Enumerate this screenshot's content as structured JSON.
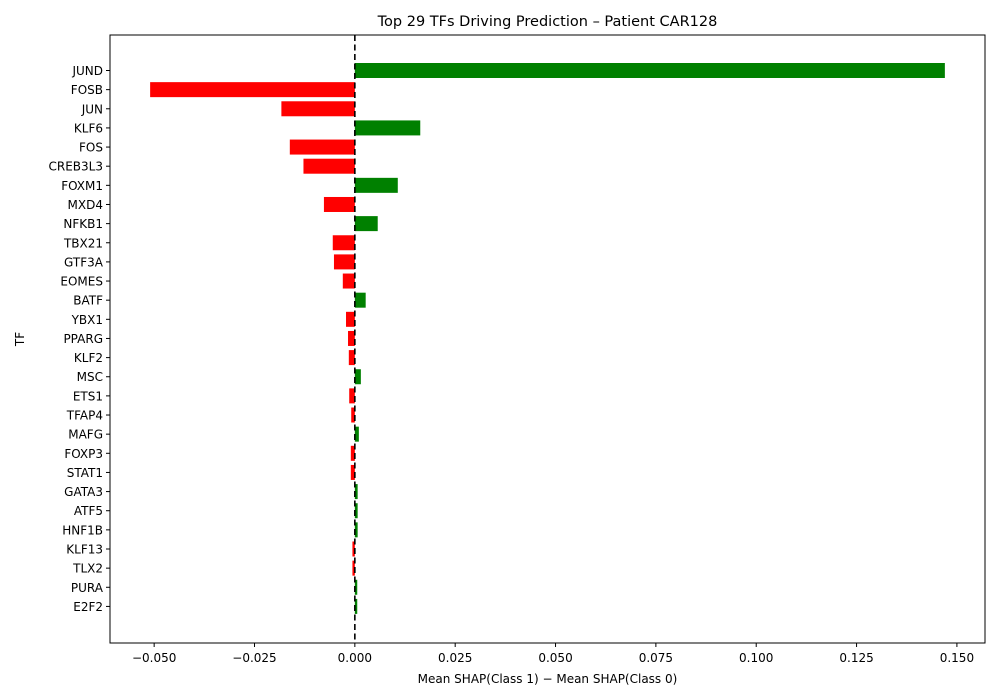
{
  "chart_data": {
    "type": "bar",
    "orientation": "horizontal",
    "title": "Top 29 TFs Driving Prediction – Patient CAR128",
    "xlabel": "Mean SHAP(Class 1) − Mean SHAP(Class 0)",
    "ylabel": "TF",
    "xlim": [
      -0.061,
      0.157
    ],
    "xticks": [
      -0.05,
      -0.025,
      0.0,
      0.025,
      0.05,
      0.075,
      0.1,
      0.125,
      0.15
    ],
    "xtick_labels": [
      "−0.050",
      "−0.025",
      "0.000",
      "0.025",
      "0.050",
      "0.075",
      "0.100",
      "0.125",
      "0.150"
    ],
    "reference_line": 0.0,
    "colors": {
      "positive": "#008000",
      "negative": "#ff0000",
      "reference": "#000000"
    },
    "grid": false,
    "categories": [
      "JUND",
      "FOSB",
      "JUN",
      "KLF6",
      "FOS",
      "CREB3L3",
      "FOXM1",
      "MXD4",
      "NFKB1",
      "TBX21",
      "GTF3A",
      "EOMES",
      "BATF",
      "YBX1",
      "PPARG",
      "KLF2",
      "MSC",
      "ETS1",
      "TFAP4",
      "MAFG",
      "FOXP3",
      "STAT1",
      "GATA3",
      "ATF5",
      "HNF1B",
      "KLF13",
      "TLX2",
      "PURA",
      "E2F2"
    ],
    "values": [
      0.147,
      -0.051,
      -0.0183,
      0.0163,
      -0.0162,
      -0.0128,
      0.0107,
      -0.0077,
      0.0057,
      -0.0055,
      -0.0052,
      -0.003,
      0.0027,
      -0.0022,
      -0.0017,
      -0.0015,
      0.0015,
      -0.0014,
      -0.0009,
      0.001,
      -0.001,
      -0.001,
      0.0007,
      0.0007,
      0.0007,
      -0.0006,
      -0.0006,
      0.0006,
      0.0006
    ]
  }
}
